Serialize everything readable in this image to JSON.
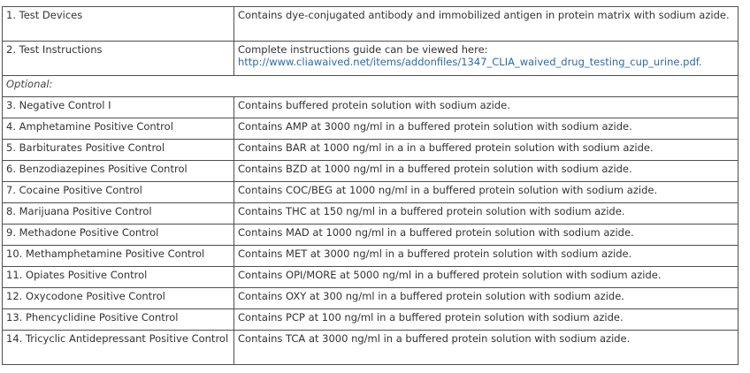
{
  "rows": [
    {
      "item": "1. Test Devices",
      "desc": "Contains dye-conjugated antibody and immobilized antigen in protein matrix with sodium azide."
    },
    {
      "item": "2. Test Instructions",
      "desc": "Complete instructions guide can be viewed here:",
      "link": "http://www.cliawaived.net/items/addonfiles/1347_CLIA_waived_drug_testing_cup_urine.pdf."
    },
    {
      "section": "Optional:"
    },
    {
      "item": "3. Negative Control I",
      "desc": "Contains buffered protein solution with sodium azide."
    },
    {
      "item": "4. Amphetamine Positive Control",
      "desc": "Contains AMP at 3000 ng/ml in a buffered protein solution with sodium azide."
    },
    {
      "item": "5. Barbiturates Positive Control",
      "desc": "Contains BAR at 1000 ng/ml in a in a buffered protein solution with sodium azide."
    },
    {
      "item": "6. Benzodiazepines Positive Control",
      "desc": "Contains BZD at 1000 ng/ml in a buffered protein solution with sodium azide."
    },
    {
      "item": "7. Cocaine Positive Control",
      "desc": "Contains COC/BEG at 1000 ng/ml in a buffered protein solution with sodium azide."
    },
    {
      "item": "8. Marijuana Positive Control",
      "desc": "Contains THC at 150 ng/ml in a buffered protein solution with sodium azide."
    },
    {
      "item": "9. Methadone Positive Control",
      "desc": "Contains MAD at 1000 ng/ml in a buffered protein solution with sodium azide."
    },
    {
      "item": "10. Methamphetamine Positive Control",
      "desc": "Contains MET at 3000 ng/ml in a buffered protein solution with sodium azide."
    },
    {
      "item": "11. Opiates Positive Control",
      "desc": "Contains OPI/MORE at 5000 ng/ml in a buffered protein solution with sodium azide."
    },
    {
      "item": "12. Oxycodone Positive Control",
      "desc": "Contains OXY at 300 ng/ml in a buffered protein solution with sodium azide."
    },
    {
      "item": "13. Phencyclidine Positive Control",
      "desc": "Contains PCP at 100 ng/ml in a buffered protein solution with sodium azide."
    },
    {
      "item": "14. Tricyclic Antidepressant Positive Control",
      "desc": "Contains TCA at 3000 ng/ml in a buffered protein solution with sodium azide."
    }
  ]
}
